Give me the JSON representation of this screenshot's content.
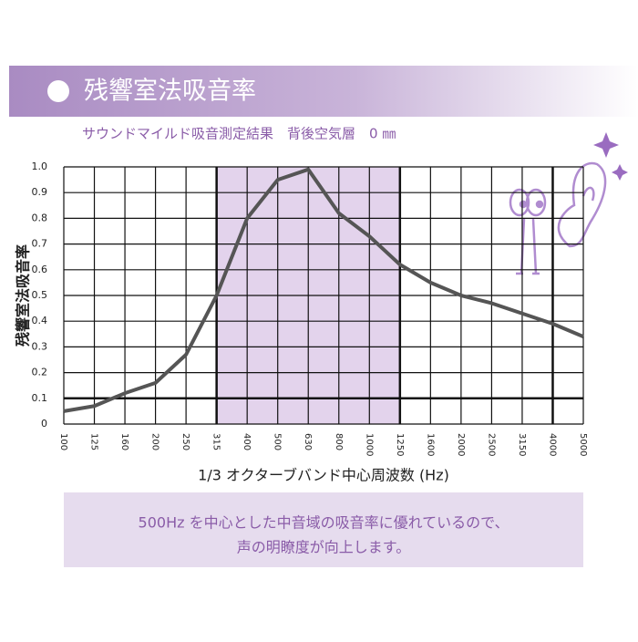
{
  "chart_data": {
    "type": "line",
    "title": "残響室法吸音率",
    "subtitle": "サウンドマイルド吸音測定結果　背後空気層　0 ㎜",
    "x_label": "1/3 オクターブバンド中心周波数 (Hz)",
    "y_label": "残響室法吸音率",
    "categories": [
      "100",
      "125",
      "160",
      "200",
      "250",
      "315",
      "400",
      "500",
      "630",
      "800",
      "1000",
      "1250",
      "1600",
      "2000",
      "2500",
      "3150",
      "4000",
      "5000"
    ],
    "values": [
      0.05,
      0.07,
      0.12,
      0.16,
      0.27,
      0.5,
      0.8,
      0.95,
      0.99,
      0.82,
      0.73,
      0.62,
      0.55,
      0.5,
      0.47,
      0.43,
      0.39,
      0.34
    ],
    "color": "#555555",
    "ylim": [
      0,
      1
    ],
    "yticks": [
      0,
      0.1,
      0.2,
      0.3,
      0.4,
      0.5,
      0.6,
      0.7,
      0.8,
      0.9,
      {
        "value": 1,
        "label": "1.0"
      }
    ],
    "grid": true,
    "note": [
      "500Hz を中心とした中音域の吸音率に優れているので、",
      "声の明瞭度が向上します。"
    ]
  }
}
